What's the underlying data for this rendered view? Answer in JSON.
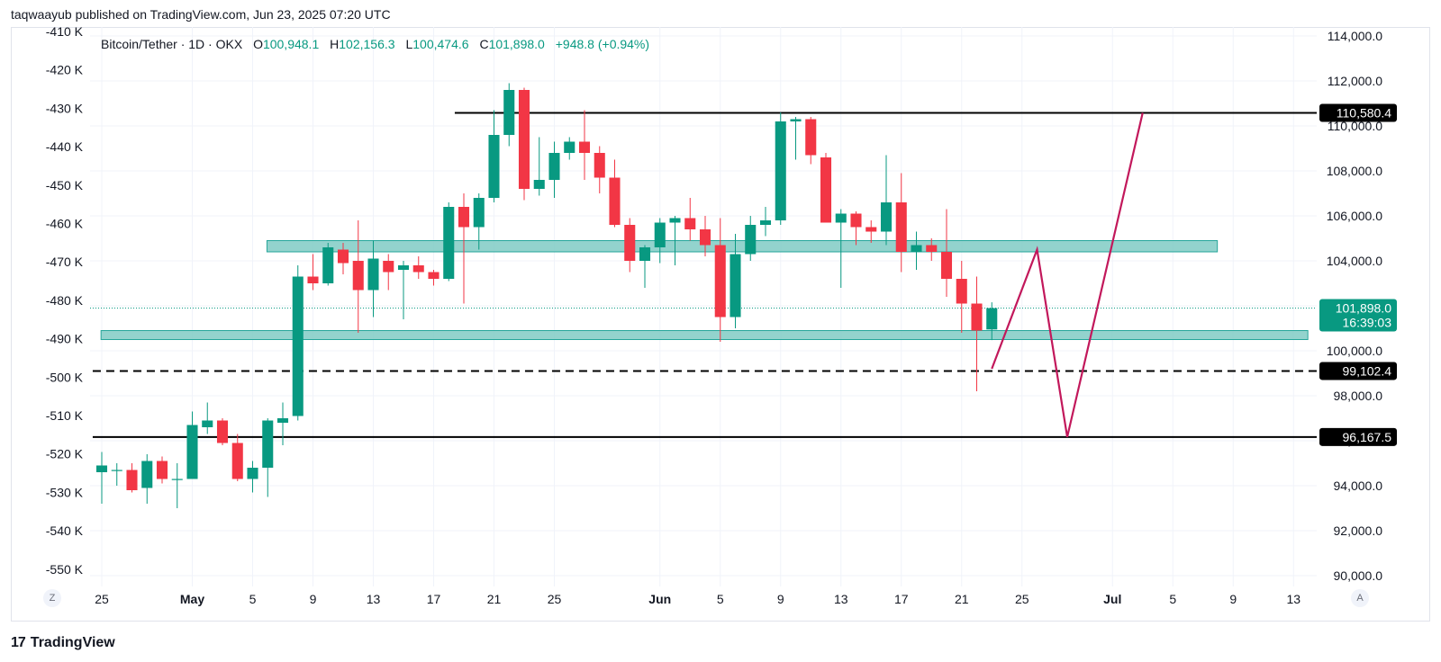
{
  "header": {
    "publisher_line": "taqwaayub published on TradingView.com, Jun 23, 2025 07:20 UTC"
  },
  "footer": {
    "brand": "TradingView",
    "logo_mark": "17"
  },
  "corner_buttons": {
    "left": "Z",
    "right": "A"
  },
  "legend": {
    "symbol": "Bitcoin/Tether · 1D · OKX",
    "o_label": "O",
    "o_value": "100,948.1",
    "h_label": "H",
    "h_value": "102,156.3",
    "l_label": "L",
    "l_value": "100,474.6",
    "c_label": "C",
    "c_value": "101,898.0",
    "change": "+948.8 (+0.94%)"
  },
  "colors": {
    "up": "#089981",
    "down": "#f23645",
    "zone": "#80cbc4",
    "path": "#c2185b",
    "price_tag": "#089981"
  },
  "chart_data": {
    "type": "candlestick",
    "title": "Bitcoin/Tether · 1D · OKX",
    "right_axis": {
      "ylim": [
        89000,
        115000
      ],
      "ticks": [
        90000,
        92000,
        94000,
        96000,
        98000,
        100000,
        102000,
        104000,
        106000,
        108000,
        110000,
        112000,
        114000
      ],
      "tick_labels": [
        "90,000.0",
        "92,000.0",
        "94,000.0",
        "96,000.0",
        "98,000.0",
        "100,000.0",
        "102,000.0",
        "104,000.0",
        "106,000.0",
        "108,000.0",
        "110,000.0",
        "112,000.0",
        "114,000.0"
      ]
    },
    "left_axis": {
      "tick_labels": [
        "-410 K",
        "-420 K",
        "-430 K",
        "-440 K",
        "-450 K",
        "-460 K",
        "-470 K",
        "-480 K",
        "-490 K",
        "-500 K",
        "-510 K",
        "-520 K",
        "-530 K",
        "-540 K",
        "-550 K"
      ]
    },
    "x_axis": {
      "xlim": [
        "2025-04-25",
        "2025-07-14"
      ],
      "ticks": [
        {
          "date": "2025-04-25",
          "label": "25"
        },
        {
          "date": "2025-05-01",
          "label": "May"
        },
        {
          "date": "2025-05-05",
          "label": "5"
        },
        {
          "date": "2025-05-09",
          "label": "9"
        },
        {
          "date": "2025-05-13",
          "label": "13"
        },
        {
          "date": "2025-05-17",
          "label": "17"
        },
        {
          "date": "2025-05-21",
          "label": "21"
        },
        {
          "date": "2025-05-25",
          "label": "25"
        },
        {
          "date": "2025-06-01",
          "label": "Jun"
        },
        {
          "date": "2025-06-05",
          "label": "5"
        },
        {
          "date": "2025-06-09",
          "label": "9"
        },
        {
          "date": "2025-06-13",
          "label": "13"
        },
        {
          "date": "2025-06-17",
          "label": "17"
        },
        {
          "date": "2025-06-21",
          "label": "21"
        },
        {
          "date": "2025-06-25",
          "label": "25"
        },
        {
          "date": "2025-07-01",
          "label": "Jul"
        },
        {
          "date": "2025-07-05",
          "label": "5"
        },
        {
          "date": "2025-07-09",
          "label": "9"
        },
        {
          "date": "2025-07-13",
          "label": "13"
        }
      ]
    },
    "candles": [
      {
        "date": "2025-04-25",
        "o": 94600,
        "h": 95500,
        "l": 93200,
        "c": 94900
      },
      {
        "date": "2025-04-26",
        "o": 94700,
        "h": 95000,
        "l": 94000,
        "c": 94700
      },
      {
        "date": "2025-04-27",
        "o": 94700,
        "h": 95000,
        "l": 93700,
        "c": 93800
      },
      {
        "date": "2025-04-28",
        "o": 93900,
        "h": 95400,
        "l": 93200,
        "c": 95100
      },
      {
        "date": "2025-04-29",
        "o": 95100,
        "h": 95300,
        "l": 94100,
        "c": 94300
      },
      {
        "date": "2025-04-30",
        "o": 94300,
        "h": 95000,
        "l": 93000,
        "c": 94300
      },
      {
        "date": "2025-05-01",
        "o": 94300,
        "h": 97300,
        "l": 94300,
        "c": 96700
      },
      {
        "date": "2025-05-02",
        "o": 96600,
        "h": 97700,
        "l": 96300,
        "c": 96900
      },
      {
        "date": "2025-05-03",
        "o": 96900,
        "h": 97000,
        "l": 95800,
        "c": 95900
      },
      {
        "date": "2025-05-04",
        "o": 95900,
        "h": 96300,
        "l": 94200,
        "c": 94300
      },
      {
        "date": "2025-05-05",
        "o": 94300,
        "h": 95100,
        "l": 93700,
        "c": 94800
      },
      {
        "date": "2025-05-06",
        "o": 94800,
        "h": 97000,
        "l": 93500,
        "c": 96900
      },
      {
        "date": "2025-05-07",
        "o": 96800,
        "h": 97700,
        "l": 95800,
        "c": 97000
      },
      {
        "date": "2025-05-08",
        "o": 97100,
        "h": 103800,
        "l": 96900,
        "c": 103300
      },
      {
        "date": "2025-05-09",
        "o": 103300,
        "h": 104300,
        "l": 102700,
        "c": 103000
      },
      {
        "date": "2025-05-10",
        "o": 103000,
        "h": 104800,
        "l": 102900,
        "c": 104600
      },
      {
        "date": "2025-05-11",
        "o": 104500,
        "h": 104800,
        "l": 103400,
        "c": 103900
      },
      {
        "date": "2025-05-12",
        "o": 104000,
        "h": 105800,
        "l": 100800,
        "c": 102700
      },
      {
        "date": "2025-05-13",
        "o": 102700,
        "h": 104900,
        "l": 101500,
        "c": 104100
      },
      {
        "date": "2025-05-14",
        "o": 104000,
        "h": 104300,
        "l": 102700,
        "c": 103500
      },
      {
        "date": "2025-05-15",
        "o": 103600,
        "h": 104000,
        "l": 101400,
        "c": 103800
      },
      {
        "date": "2025-05-16",
        "o": 103800,
        "h": 104200,
        "l": 103200,
        "c": 103500
      },
      {
        "date": "2025-05-17",
        "o": 103500,
        "h": 103600,
        "l": 102900,
        "c": 103200
      },
      {
        "date": "2025-05-18",
        "o": 103200,
        "h": 106600,
        "l": 103100,
        "c": 106400
      },
      {
        "date": "2025-05-19",
        "o": 106400,
        "h": 107000,
        "l": 102100,
        "c": 105500
      },
      {
        "date": "2025-05-20",
        "o": 105500,
        "h": 107000,
        "l": 104500,
        "c": 106800
      },
      {
        "date": "2025-05-21",
        "o": 106800,
        "h": 110700,
        "l": 106600,
        "c": 109600
      },
      {
        "date": "2025-05-22",
        "o": 109600,
        "h": 111900,
        "l": 109100,
        "c": 111600
      },
      {
        "date": "2025-05-23",
        "o": 111600,
        "h": 111700,
        "l": 106700,
        "c": 107200
      },
      {
        "date": "2025-05-24",
        "o": 107200,
        "h": 109500,
        "l": 106900,
        "c": 107600
      },
      {
        "date": "2025-05-25",
        "o": 107600,
        "h": 109300,
        "l": 106800,
        "c": 108800
      },
      {
        "date": "2025-05-26",
        "o": 108800,
        "h": 109500,
        "l": 108500,
        "c": 109300
      },
      {
        "date": "2025-05-27",
        "o": 109300,
        "h": 110700,
        "l": 107600,
        "c": 108800
      },
      {
        "date": "2025-05-28",
        "o": 108800,
        "h": 109100,
        "l": 107000,
        "c": 107700
      },
      {
        "date": "2025-05-29",
        "o": 107700,
        "h": 108500,
        "l": 105500,
        "c": 105600
      },
      {
        "date": "2025-05-30",
        "o": 105600,
        "h": 105900,
        "l": 103500,
        "c": 104000
      },
      {
        "date": "2025-05-31",
        "o": 104000,
        "h": 104700,
        "l": 102800,
        "c": 104600
      },
      {
        "date": "2025-06-01",
        "o": 104600,
        "h": 105900,
        "l": 103900,
        "c": 105700
      },
      {
        "date": "2025-06-02",
        "o": 105700,
        "h": 106000,
        "l": 103800,
        "c": 105900
      },
      {
        "date": "2025-06-03",
        "o": 105900,
        "h": 106800,
        "l": 104900,
        "c": 105400
      },
      {
        "date": "2025-06-04",
        "o": 105400,
        "h": 106000,
        "l": 104200,
        "c": 104700
      },
      {
        "date": "2025-06-05",
        "o": 104700,
        "h": 105900,
        "l": 100400,
        "c": 101500
      },
      {
        "date": "2025-06-06",
        "o": 101500,
        "h": 105200,
        "l": 101000,
        "c": 104300
      },
      {
        "date": "2025-06-07",
        "o": 104300,
        "h": 106000,
        "l": 104000,
        "c": 105600
      },
      {
        "date": "2025-06-08",
        "o": 105600,
        "h": 106400,
        "l": 105100,
        "c": 105800
      },
      {
        "date": "2025-06-09",
        "o": 105800,
        "h": 110600,
        "l": 105600,
        "c": 110200
      },
      {
        "date": "2025-06-10",
        "o": 110200,
        "h": 110400,
        "l": 108500,
        "c": 110300
      },
      {
        "date": "2025-06-11",
        "o": 110300,
        "h": 110400,
        "l": 108300,
        "c": 108700
      },
      {
        "date": "2025-06-12",
        "o": 108600,
        "h": 108800,
        "l": 105700,
        "c": 105700
      },
      {
        "date": "2025-06-13",
        "o": 105700,
        "h": 106300,
        "l": 102800,
        "c": 106100
      },
      {
        "date": "2025-06-14",
        "o": 106100,
        "h": 106200,
        "l": 104700,
        "c": 105500
      },
      {
        "date": "2025-06-15",
        "o": 105500,
        "h": 105800,
        "l": 104800,
        "c": 105300
      },
      {
        "date": "2025-06-16",
        "o": 105300,
        "h": 108700,
        "l": 104700,
        "c": 106600
      },
      {
        "date": "2025-06-17",
        "o": 106600,
        "h": 107900,
        "l": 103500,
        "c": 104400
      },
      {
        "date": "2025-06-18",
        "o": 104400,
        "h": 105300,
        "l": 103600,
        "c": 104700
      },
      {
        "date": "2025-06-19",
        "o": 104700,
        "h": 105000,
        "l": 104000,
        "c": 104400
      },
      {
        "date": "2025-06-20",
        "o": 104400,
        "h": 106300,
        "l": 102400,
        "c": 103200
      },
      {
        "date": "2025-06-21",
        "o": 103200,
        "h": 104000,
        "l": 100800,
        "c": 102100
      },
      {
        "date": "2025-06-22",
        "o": 102100,
        "h": 103300,
        "l": 98200,
        "c": 100900
      },
      {
        "date": "2025-06-23",
        "o": 100948.1,
        "h": 102156.3,
        "l": 100474.6,
        "c": 101898.0
      }
    ],
    "zones": [
      {
        "from_date": "2025-05-06",
        "to_date": "2025-07-08",
        "low": 104400,
        "high": 104900
      },
      {
        "from_date": "2025-04-25",
        "to_date": "2025-07-14",
        "low": 100500,
        "high": 100900
      }
    ],
    "levels": [
      {
        "value": 110580.4,
        "label": "110,580.4",
        "style": "solid",
        "from_date": "2025-05-19"
      },
      {
        "value": 99102.4,
        "label": "99,102.4",
        "style": "dashed",
        "from_date": "2025-04-25"
      },
      {
        "value": 96167.5,
        "label": "96,167.5",
        "style": "solid",
        "from_date": "2025-04-25"
      }
    ],
    "current_price": {
      "value": 101898.0,
      "label": "101,898.0",
      "countdown": "16:39:03"
    },
    "projection": [
      {
        "date": "2025-06-23",
        "value": 99200
      },
      {
        "date": "2025-06-26",
        "value": 104500
      },
      {
        "date": "2025-06-28",
        "value": 96167.5
      },
      {
        "date": "2025-07-03",
        "value": 110580.4
      }
    ]
  }
}
